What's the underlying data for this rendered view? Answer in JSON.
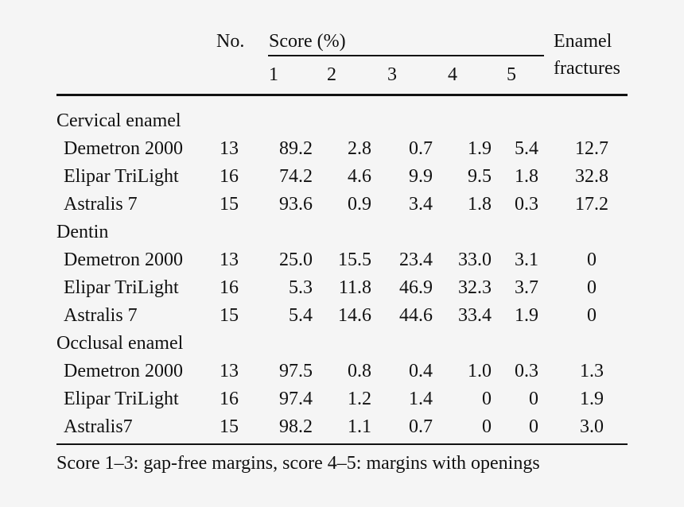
{
  "table": {
    "header": {
      "no": "No.",
      "score": "Score (%)",
      "score_columns": [
        "1",
        "2",
        "3",
        "4",
        "5"
      ],
      "enamel_fractures": [
        "Enamel",
        "fractures"
      ]
    },
    "groups": [
      {
        "label": "Cervical enamel",
        "rows": [
          {
            "name": "Demetron 2000",
            "no": "13",
            "s1": "89.2",
            "s2": "2.8",
            "s3": "0.7",
            "s4": "1.9",
            "s5": "5.4",
            "ef": "12.7"
          },
          {
            "name": "Elipar TriLight",
            "no": "16",
            "s1": "74.2",
            "s2": "4.6",
            "s3": "9.9",
            "s4": "9.5",
            "s5": "1.8",
            "ef": "32.8"
          },
          {
            "name": "Astralis 7",
            "no": "15",
            "s1": "93.6",
            "s2": "0.9",
            "s3": "3.4",
            "s4": "1.8",
            "s5": "0.3",
            "ef": "17.2"
          }
        ]
      },
      {
        "label": "Dentin",
        "rows": [
          {
            "name": "Demetron 2000",
            "no": "13",
            "s1": "25.0",
            "s2": "15.5",
            "s3": "23.4",
            "s4": "33.0",
            "s5": "3.1",
            "ef": "0"
          },
          {
            "name": "Elipar TriLight",
            "no": "16",
            "s1": "5.3",
            "s2": "11.8",
            "s3": "46.9",
            "s4": "32.3",
            "s5": "3.7",
            "ef": "0"
          },
          {
            "name": "Astralis 7",
            "no": "15",
            "s1": "5.4",
            "s2": "14.6",
            "s3": "44.6",
            "s4": "33.4",
            "s5": "1.9",
            "ef": "0"
          }
        ]
      },
      {
        "label": "Occlusal enamel",
        "rows": [
          {
            "name": "Demetron 2000",
            "no": "13",
            "s1": "97.5",
            "s2": "0.8",
            "s3": "0.4",
            "s4": "1.0",
            "s5": "0.3",
            "ef": "1.3"
          },
          {
            "name": "Elipar TriLight",
            "no": "16",
            "s1": "97.4",
            "s2": "1.2",
            "s3": "1.4",
            "s4": "0",
            "s5": "0",
            "ef": "1.9"
          },
          {
            "name": "Astralis7",
            "no": "15",
            "s1": "98.2",
            "s2": "1.1",
            "s3": "0.7",
            "s4": "0",
            "s5": "0",
            "ef": "3.0"
          }
        ]
      }
    ],
    "footnote": "Score 1–3: gap-free margins, score 4–5: margins with openings"
  }
}
